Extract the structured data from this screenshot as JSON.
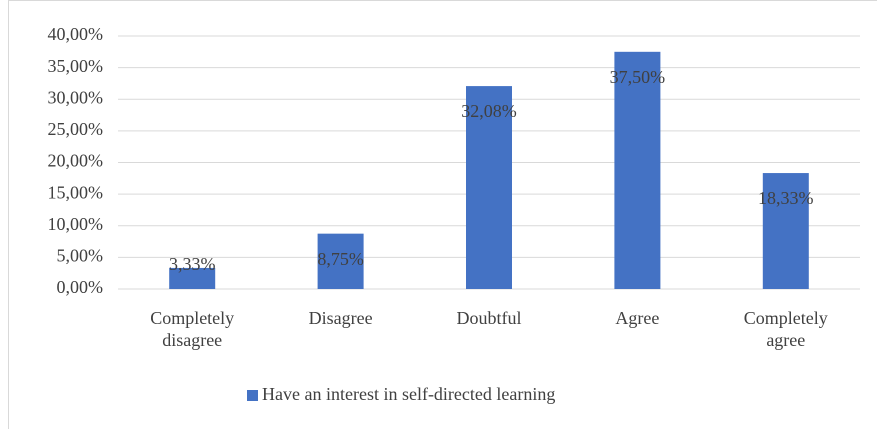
{
  "chart_data": {
    "type": "bar",
    "categories": [
      "Completely disagree",
      "Disagree",
      "Doubtful",
      "Agree",
      "Completely agree"
    ],
    "series": [
      {
        "name": "Have an interest in self-directed learning",
        "color": "#4472c4",
        "values": [
          3.33,
          8.75,
          32.08,
          37.5,
          18.33
        ],
        "value_labels": [
          "3,33%",
          "8,75%",
          "32,08%",
          "37,50%",
          "18,33%"
        ]
      }
    ],
    "ylim": [
      0,
      40
    ],
    "yticks": [
      {
        "value": 0,
        "label": "0,00%"
      },
      {
        "value": 5,
        "label": "5,00%"
      },
      {
        "value": 10,
        "label": "10,00%"
      },
      {
        "value": 15,
        "label": "15,00%"
      },
      {
        "value": 20,
        "label": "20,00%"
      },
      {
        "value": 25,
        "label": "25,00%"
      },
      {
        "value": 30,
        "label": "30,00%"
      },
      {
        "value": 35,
        "label": "35,00%"
      },
      {
        "value": 40,
        "label": "40,00%"
      }
    ],
    "grid": true,
    "legend": "bottom"
  }
}
